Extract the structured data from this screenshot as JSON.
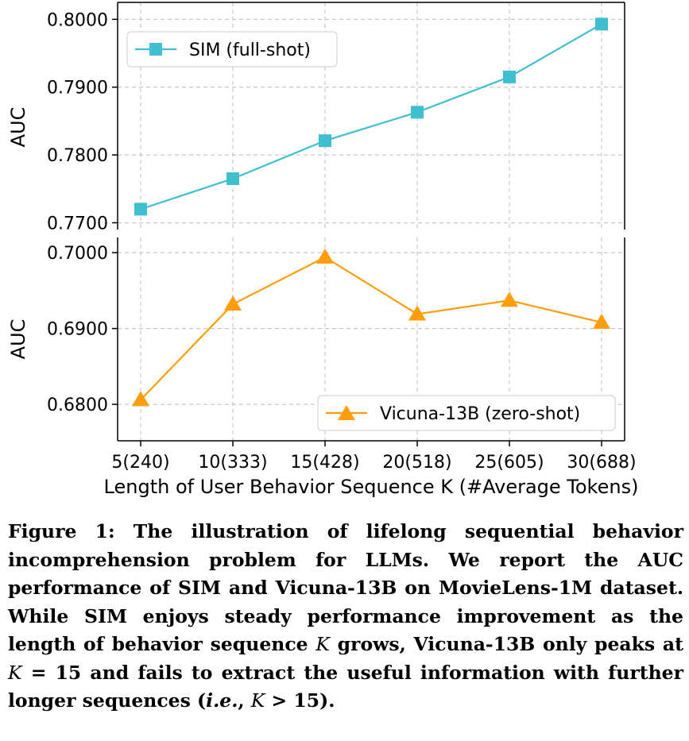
{
  "chart_data": [
    {
      "type": "line",
      "ylabel": "AUC",
      "ylim": [
        0.769,
        0.8025
      ],
      "yticks": [
        "0.7700",
        "0.7800",
        "0.7900",
        "0.8000"
      ],
      "categories": [
        "5(240)",
        "10(333)",
        "15(428)",
        "20(518)",
        "25(605)",
        "30(688)"
      ],
      "series": [
        {
          "name": "SIM (full-shot)",
          "marker": "square",
          "color": "#3fbfcf",
          "values": [
            0.772,
            0.7765,
            0.7821,
            0.7863,
            0.7915,
            0.7993
          ]
        }
      ],
      "legend": "top-left",
      "grid": true
    },
    {
      "type": "line",
      "ylabel": "AUC",
      "ylim": [
        0.6752,
        0.702
      ],
      "yticks": [
        "0.6800",
        "0.6900",
        "0.7000"
      ],
      "categories": [
        "5(240)",
        "10(333)",
        "15(428)",
        "20(518)",
        "25(605)",
        "30(688)"
      ],
      "xlabel": "Length of User Behavior Sequence K (#Average Tokens)",
      "series": [
        {
          "name": "Vicuna-13B (zero-shot)",
          "marker": "triangle",
          "color": "#ff9d0a",
          "values": [
            0.6806,
            0.6932,
            0.6994,
            0.6919,
            0.6937,
            0.6908
          ]
        }
      ],
      "legend": "bottom-right",
      "grid": true
    }
  ],
  "caption": {
    "prefix": "Figure 1: The illustration of lifelong sequential behavior incomprehension problem for LLMs. We report the AUC performance of SIM and Vicuna-13B on MovieLens-1M dataset. While SIM enjoys steady performance improvement as the length of behavior sequence ",
    "var1": "K",
    "mid1": " grows, Vicuna-13B only peaks at ",
    "var2": "K",
    "mid2": " = 15 and fails to extract the useful information with further longer sequences (",
    "ie": "i.e.",
    "mid3": ", ",
    "var3": "K",
    "mid4": " > 15)."
  }
}
